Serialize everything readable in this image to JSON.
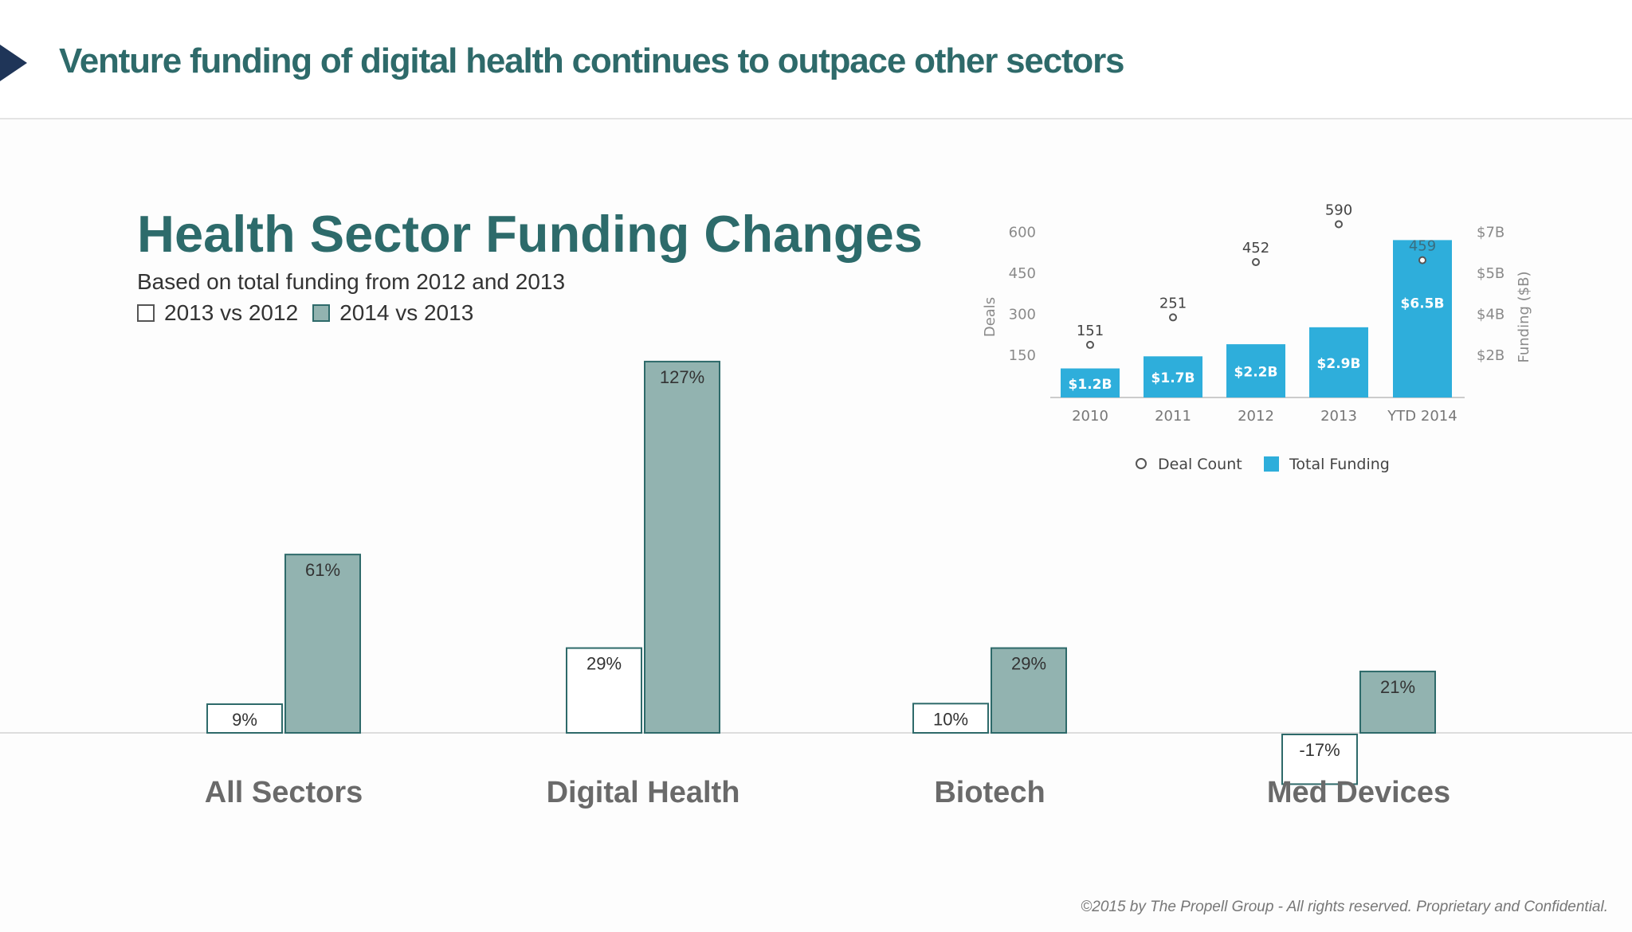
{
  "header": {
    "title": "Venture funding of digital health continues to outpace other sectors"
  },
  "colors": {
    "title": "#2e6a6a",
    "bar_2014": "#92b3b0",
    "bar_border": "#2e6a6a",
    "inset_bar": "#2eaedb"
  },
  "footer": {
    "text": "©2015 by The Propell Group -  All rights reserved. Proprietary and Confidential."
  },
  "chart_data": [
    {
      "type": "bar",
      "title": "Health Sector Funding Changes",
      "subtitle": "Based on total funding from 2012 and 2013",
      "categories": [
        "All Sectors",
        "Digital Health",
        "Biotech",
        "Med Devices"
      ],
      "series": [
        {
          "name": "2013 vs 2012",
          "values": [
            9,
            29,
            10,
            -17
          ],
          "labels": [
            "9%",
            "29%",
            "10%",
            "-17%"
          ]
        },
        {
          "name": "2014 vs 2013",
          "values": [
            61,
            127,
            29,
            21
          ],
          "labels": [
            "61%",
            "127%",
            "29%",
            "21%"
          ]
        }
      ],
      "legend_position": "top-left",
      "grid": false
    },
    {
      "type": "bar",
      "categories": [
        "2010",
        "2011",
        "2012",
        "2013",
        "YTD 2014"
      ],
      "series": [
        {
          "name": "Total Funding",
          "type": "bar",
          "axis": "right",
          "values": [
            1.2,
            1.7,
            2.2,
            2.9,
            6.5
          ],
          "labels": [
            "$1.2B",
            "$1.7B",
            "$2.2B",
            "$2.9B",
            "$6.5B"
          ]
        },
        {
          "name": "Deal Count",
          "type": "scatter",
          "axis": "left",
          "values": [
            151,
            251,
            452,
            590,
            459
          ],
          "labels": [
            "151",
            "251",
            "452",
            "590",
            "459"
          ]
        }
      ],
      "ylabel": "Deals",
      "ylabel_right": "Funding ($B)",
      "yticks_left": [
        "150",
        "300",
        "450",
        "600"
      ],
      "yticks_right": [
        "$2B",
        "$4B",
        "$5B",
        "$7B"
      ],
      "legend_position": "bottom",
      "grid": false
    }
  ]
}
